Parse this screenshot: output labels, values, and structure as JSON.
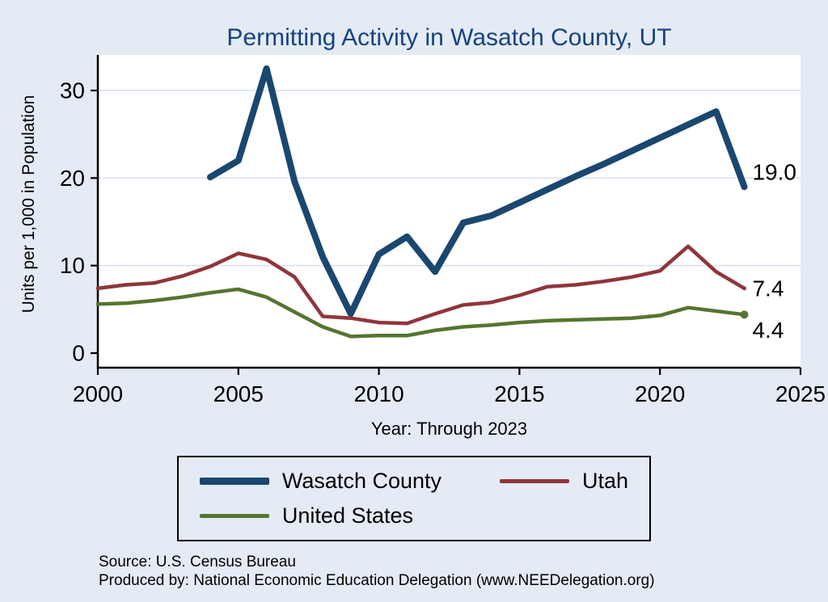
{
  "chart_data": {
    "type": "line",
    "title": "Permitting Activity in Wasatch County, UT",
    "xlabel": "Year: Through 2023",
    "ylabel": "Units per 1,000 in Population",
    "xlim": [
      2000,
      2025
    ],
    "ylim": [
      0,
      33
    ],
    "x_ticks": [
      2000,
      2005,
      2010,
      2015,
      2020,
      2025
    ],
    "y_ticks": [
      0,
      10,
      20,
      30
    ],
    "grid": "horizontal",
    "legend_position": "bottom",
    "title_color": "#17437f",
    "background": "#e4ebf5",
    "plot_background": "#ffffff",
    "grid_color": "#d6e0ef",
    "axis_color": "#000000",
    "series": [
      {
        "name": "Wasatch County",
        "color": "#1a476f",
        "width": 8,
        "end_label": "19.0",
        "x": [
          2004,
          2005,
          2006,
          2007,
          2008,
          2009,
          2010,
          2011,
          2012,
          2013,
          2014,
          2015,
          2016,
          2017,
          2018,
          2019,
          2020,
          2021,
          2022,
          2023
        ],
        "values": [
          20.1,
          22.0,
          32.5,
          19.6,
          11.0,
          4.5,
          11.3,
          13.3,
          9.3,
          14.9,
          15.7,
          17.2,
          18.7,
          20.2,
          21.6,
          23.1,
          24.6,
          26.1,
          27.6,
          19.0
        ]
      },
      {
        "name": "Utah",
        "color": "#90353b",
        "width": 4.5,
        "end_label": "7.4",
        "x": [
          2000,
          2001,
          2002,
          2003,
          2004,
          2005,
          2006,
          2007,
          2008,
          2009,
          2010,
          2011,
          2012,
          2013,
          2014,
          2015,
          2016,
          2017,
          2018,
          2019,
          2020,
          2021,
          2022,
          2023
        ],
        "values": [
          7.4,
          7.8,
          8.0,
          8.8,
          9.9,
          11.4,
          10.7,
          8.7,
          4.2,
          4.0,
          3.5,
          3.4,
          4.5,
          5.5,
          5.8,
          6.6,
          7.6,
          7.8,
          8.2,
          8.7,
          9.4,
          12.2,
          9.3,
          7.4
        ]
      },
      {
        "name": "United States",
        "color": "#55752f",
        "width": 4.5,
        "end_label": "4.4",
        "x": [
          2000,
          2001,
          2002,
          2003,
          2004,
          2005,
          2006,
          2007,
          2008,
          2009,
          2010,
          2011,
          2012,
          2013,
          2014,
          2015,
          2016,
          2017,
          2018,
          2019,
          2020,
          2021,
          2022,
          2023
        ],
        "values": [
          5.6,
          5.7,
          6.0,
          6.4,
          6.9,
          7.3,
          6.4,
          4.7,
          3.0,
          1.9,
          2.0,
          2.0,
          2.6,
          3.0,
          3.2,
          3.5,
          3.7,
          3.8,
          3.9,
          4.0,
          4.3,
          5.2,
          4.8,
          4.4
        ]
      }
    ]
  },
  "footer": {
    "source": "Source: U.S. Census Bureau",
    "produced_by": "Produced by: National Economic Education Delegation (www.NEEDelegation.org)"
  }
}
